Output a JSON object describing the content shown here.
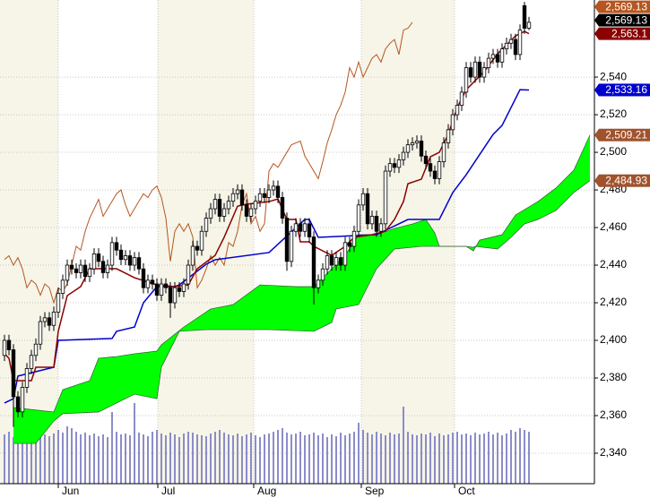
{
  "chart_data": {
    "type": "candlestick",
    "xlim": [
      -1,
      131.6
    ],
    "ylim": [
      2323.8,
      2581
    ],
    "grid": true,
    "xticks": [
      {
        "value": 12,
        "label": "Jun"
      },
      {
        "value": 34.2,
        "label": "Jul"
      },
      {
        "value": 55.6,
        "label": "Aug"
      },
      {
        "value": 79.6,
        "label": "Sep"
      },
      {
        "value": 100.4,
        "label": "Oct"
      }
    ],
    "yticks": [
      {
        "value": 2340,
        "label": "2,340"
      },
      {
        "value": 2360,
        "label": "2,360"
      },
      {
        "value": 2380,
        "label": "2,380"
      },
      {
        "value": 2400,
        "label": "2,400"
      },
      {
        "value": 2420,
        "label": "2,420"
      },
      {
        "value": 2440,
        "label": "2,440"
      },
      {
        "value": 2460,
        "label": "2,460"
      },
      {
        "value": 2480,
        "label": "2,480"
      },
      {
        "value": 2500,
        "label": "2,500"
      },
      {
        "value": 2520,
        "label": "2,520"
      },
      {
        "value": 2540,
        "label": "2,540"
      }
    ],
    "candles": {
      "up_color": "#ffffff",
      "down_color": "#000000",
      "label_color": "#000000",
      "last_label": "2,569.13",
      "open": [
        2392,
        2400,
        2395,
        2370,
        2362,
        2375,
        2385,
        2392,
        2398,
        2410,
        2412,
        2408,
        2415,
        2425,
        2432,
        2440,
        2438,
        2436,
        2440,
        2434,
        2438,
        2446,
        2442,
        2436,
        2440,
        2452,
        2448,
        2443,
        2445,
        2440,
        2444,
        2438,
        2428,
        2432,
        2430,
        2424,
        2430,
        2428,
        2420,
        2428,
        2426,
        2430,
        2440,
        2450,
        2448,
        2458,
        2465,
        2470,
        2475,
        2466,
        2470,
        2474,
        2478,
        2480,
        2472,
        2466,
        2470,
        2474,
        2478,
        2476,
        2480,
        2482,
        2476,
        2465,
        2442,
        2458,
        2462,
        2458,
        2462,
        2455,
        2428,
        2432,
        2438,
        2445,
        2440,
        2444,
        2440,
        2452,
        2450,
        2458,
        2472,
        2478,
        2462,
        2466,
        2458,
        2462,
        2490,
        2494,
        2492,
        2496,
        2500,
        2504,
        2505,
        2506,
        2498,
        2494,
        2490,
        2486,
        2495,
        2505,
        2512,
        2520,
        2525,
        2532,
        2545,
        2540,
        2548,
        2540,
        2545,
        2550,
        2552,
        2548,
        2555,
        2558,
        2560,
        2552,
        2578,
        2566
      ],
      "high": [
        2403,
        2403,
        2398,
        2373,
        2378,
        2388,
        2395,
        2401,
        2413,
        2415,
        2415,
        2418,
        2428,
        2435,
        2443,
        2443,
        2441,
        2443,
        2443,
        2441,
        2449,
        2449,
        2445,
        2443,
        2455,
        2455,
        2451,
        2448,
        2448,
        2447,
        2447,
        2441,
        2435,
        2435,
        2433,
        2433,
        2433,
        2431,
        2431,
        2431,
        2433,
        2443,
        2453,
        2453,
        2461,
        2468,
        2473,
        2478,
        2478,
        2473,
        2477,
        2481,
        2483,
        2483,
        2475,
        2473,
        2477,
        2481,
        2481,
        2483,
        2485,
        2485,
        2479,
        2468,
        2461,
        2465,
        2465,
        2465,
        2465,
        2458,
        2435,
        2441,
        2448,
        2448,
        2447,
        2447,
        2455,
        2455,
        2461,
        2475,
        2481,
        2481,
        2469,
        2469,
        2465,
        2493,
        2497,
        2497,
        2499,
        2503,
        2507,
        2508,
        2509,
        2509,
        2501,
        2497,
        2493,
        2498,
        2508,
        2515,
        2523,
        2528,
        2535,
        2548,
        2548,
        2551,
        2551,
        2548,
        2553,
        2555,
        2555,
        2558,
        2561,
        2563,
        2563,
        2568,
        2580,
        2572
      ],
      "low": [
        2389,
        2392,
        2354,
        2359,
        2359,
        2372,
        2382,
        2389,
        2395,
        2407,
        2405,
        2405,
        2412,
        2422,
        2429,
        2435,
        2433,
        2433,
        2431,
        2431,
        2435,
        2439,
        2433,
        2433,
        2437,
        2445,
        2440,
        2440,
        2437,
        2437,
        2435,
        2425,
        2425,
        2427,
        2421,
        2421,
        2425,
        2412,
        2417,
        2423,
        2423,
        2427,
        2437,
        2445,
        2445,
        2455,
        2462,
        2467,
        2463,
        2463,
        2467,
        2471,
        2475,
        2469,
        2463,
        2463,
        2467,
        2471,
        2473,
        2473,
        2477,
        2473,
        2462,
        2437,
        2439,
        2455,
        2455,
        2455,
        2452,
        2419,
        2425,
        2429,
        2435,
        2437,
        2437,
        2437,
        2437,
        2447,
        2447,
        2455,
        2469,
        2459,
        2459,
        2455,
        2455,
        2459,
        2487,
        2489,
        2489,
        2493,
        2497,
        2501,
        2502,
        2495,
        2491,
        2487,
        2483,
        2483,
        2492,
        2502,
        2509,
        2517,
        2522,
        2529,
        2537,
        2537,
        2537,
        2537,
        2542,
        2547,
        2545,
        2545,
        2552,
        2555,
        2549,
        2549,
        2563,
        2565
      ],
      "close": [
        2400,
        2395,
        2370,
        2362,
        2375,
        2385,
        2392,
        2398,
        2410,
        2412,
        2408,
        2415,
        2425,
        2432,
        2440,
        2438,
        2436,
        2440,
        2434,
        2438,
        2446,
        2442,
        2436,
        2440,
        2452,
        2448,
        2443,
        2445,
        2440,
        2444,
        2438,
        2428,
        2432,
        2430,
        2424,
        2430,
        2428,
        2420,
        2428,
        2426,
        2430,
        2440,
        2450,
        2448,
        2458,
        2465,
        2470,
        2475,
        2466,
        2470,
        2474,
        2478,
        2480,
        2472,
        2466,
        2470,
        2474,
        2478,
        2476,
        2480,
        2482,
        2476,
        2465,
        2442,
        2458,
        2462,
        2458,
        2462,
        2455,
        2428,
        2432,
        2438,
        2445,
        2440,
        2444,
        2440,
        2452,
        2450,
        2458,
        2472,
        2478,
        2462,
        2466,
        2458,
        2462,
        2490,
        2494,
        2492,
        2496,
        2500,
        2504,
        2505,
        2506,
        2498,
        2494,
        2490,
        2486,
        2495,
        2505,
        2512,
        2520,
        2525,
        2532,
        2545,
        2540,
        2548,
        2540,
        2545,
        2550,
        2552,
        2548,
        2555,
        2558,
        2560,
        2552,
        2565,
        2566,
        2569.13
      ]
    },
    "volume": {
      "color": "#8c8cc8",
      "values": [
        55,
        58,
        52,
        60,
        56,
        54,
        57,
        62,
        58,
        55,
        53,
        56,
        60,
        57,
        64,
        62,
        58,
        55,
        57,
        54,
        56,
        53,
        55,
        52,
        80,
        58,
        55,
        56,
        54,
        90,
        57,
        55,
        53,
        58,
        60,
        56,
        54,
        57,
        55,
        52,
        56,
        58,
        57,
        55,
        54,
        53,
        56,
        58,
        60,
        57,
        55,
        54,
        56,
        53,
        55,
        57,
        54,
        52,
        55,
        56,
        58,
        60,
        62,
        57,
        55,
        56,
        58,
        54,
        55,
        57,
        54,
        56,
        52,
        55,
        53,
        57,
        54,
        56,
        58,
        68,
        60,
        57,
        55,
        58,
        56,
        54,
        57,
        55,
        56,
        86,
        58,
        55,
        54,
        56,
        55,
        57,
        53,
        56,
        54,
        55,
        57,
        58,
        55,
        56,
        54,
        57,
        55,
        56,
        58,
        55,
        57,
        54,
        56,
        60,
        58,
        62,
        60,
        58
      ]
    },
    "chikou": {
      "color": "#b5561f",
      "last_label": "2,569.13"
    },
    "tenkan": {
      "color": "#8b0000",
      "last_label": "2,563.1",
      "x": [
        0,
        1,
        2,
        6,
        7,
        11,
        12,
        14,
        17,
        19,
        25,
        29,
        34,
        38,
        41,
        43,
        47,
        49,
        52,
        54,
        59,
        61,
        63,
        65,
        66,
        68,
        69,
        73,
        76,
        78,
        82,
        85,
        87,
        89,
        90,
        93,
        95,
        97,
        99,
        101,
        103,
        105,
        107,
        110,
        112,
        114,
        116,
        117
      ],
      "values": [
        2392.9,
        2390.5,
        2378.6,
        2378.6,
        2385.7,
        2385.7,
        2404.8,
        2423.8,
        2428.6,
        2438.1,
        2438.1,
        2433.3,
        2429.5,
        2428.6,
        2429.5,
        2438.1,
        2445.2,
        2454.8,
        2471.4,
        2472.4,
        2473.8,
        2475.2,
        2464.3,
        2464.3,
        2452.4,
        2452.4,
        2450,
        2445.2,
        2450,
        2454.8,
        2456.2,
        2458.1,
        2464.3,
        2473.8,
        2483.3,
        2485.7,
        2497.6,
        2500,
        2509.5,
        2523.8,
        2533.3,
        2538.1,
        2542.9,
        2552.4,
        2557.1,
        2561.9,
        2564.3,
        2563.1
      ]
    },
    "kijun": {
      "color": "#0000cd",
      "last_label": "2,533.16",
      "x": [
        0,
        2,
        3,
        11,
        12,
        24,
        25,
        29,
        31,
        34,
        38,
        39,
        45,
        47,
        59,
        67,
        68,
        70,
        83,
        90,
        97,
        100,
        103,
        107,
        109,
        111,
        115,
        117
      ],
      "values": [
        2366.7,
        2369,
        2381,
        2385.7,
        2400,
        2401,
        2404.8,
        2407.1,
        2420,
        2428.6,
        2428.6,
        2429.5,
        2440.5,
        2442.9,
        2446.7,
        2464.3,
        2464.3,
        2454.8,
        2456.2,
        2464.3,
        2464.3,
        2478.6,
        2488.1,
        2502.4,
        2509.5,
        2514.3,
        2533.3,
        2533.16
      ]
    },
    "span_a": {
      "color": "#2f5f2f",
      "label_color": "#a0522d",
      "last_label": "2,509.21",
      "x": [
        2,
        11,
        13,
        19,
        21,
        25,
        29,
        34,
        35,
        40,
        46,
        51,
        57,
        65,
        69,
        71,
        76,
        79,
        83,
        87,
        91,
        94,
        96,
        97,
        103,
        104.6,
        106,
        111,
        114,
        119,
        123,
        127,
        130.6
      ],
      "values": [
        2364.3,
        2361.9,
        2373.8,
        2378.6,
        2390.5,
        2391.4,
        2392.9,
        2394.3,
        2397.6,
        2407.1,
        2416.7,
        2419,
        2429.5,
        2428.6,
        2428.6,
        2433.3,
        2445.2,
        2456.2,
        2456.2,
        2459.5,
        2461.9,
        2464.3,
        2457.1,
        2450,
        2450,
        2447.6,
        2453.3,
        2456.2,
        2466.7,
        2473.8,
        2481,
        2490.5,
        2509.21
      ]
    },
    "span_b": {
      "color": "#2f5f2f",
      "label_color": "#a0522d",
      "last_label": "2,484.93",
      "x": [
        2,
        7,
        11,
        13,
        21,
        29,
        34,
        35,
        39,
        45,
        51,
        59,
        69,
        73,
        74,
        79,
        83,
        87,
        93,
        103,
        104.6,
        105,
        110,
        113,
        116,
        119,
        123,
        127,
        130.6
      ],
      "values": [
        2345.2,
        2345.2,
        2357.1,
        2361,
        2361.9,
        2371.4,
        2369,
        2385.7,
        2404.8,
        2405.7,
        2405.7,
        2405.7,
        2404.8,
        2409.5,
        2416.7,
        2419,
        2438.1,
        2448.6,
        2450,
        2450,
        2449.5,
        2450,
        2448.6,
        2454.8,
        2461.9,
        2464.3,
        2469,
        2478.6,
        2484.93
      ]
    },
    "cloud_color": "#00ff00"
  }
}
